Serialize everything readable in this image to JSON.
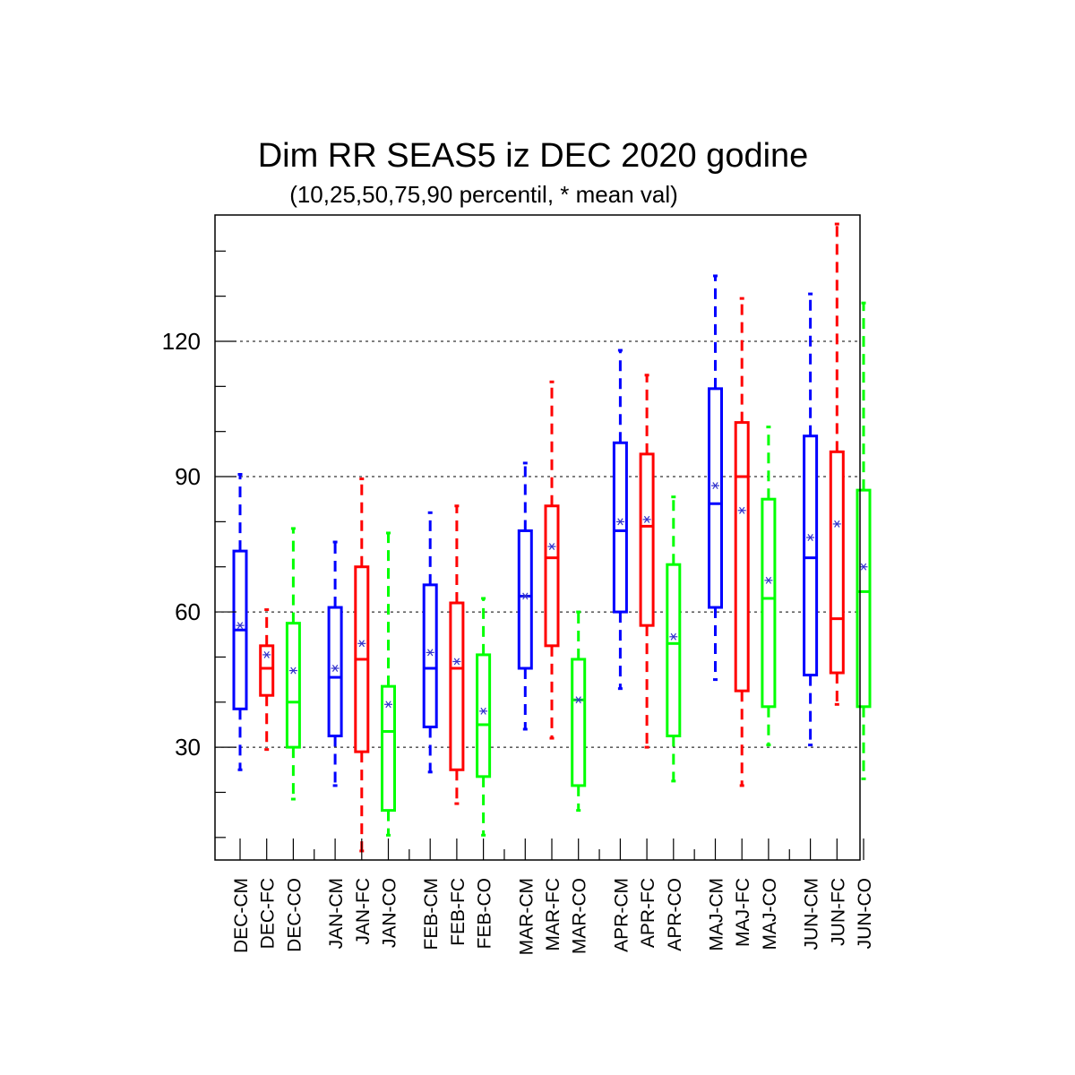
{
  "chart_data": {
    "type": "boxplot",
    "title": "Dim RR SEAS5 iz DEC 2020 godine",
    "subtitle": "(10,25,50,75,90 percentil, * mean val)",
    "xlabel": "",
    "ylabel": "",
    "ylim": [
      5,
      148
    ],
    "yticks": [
      30,
      60,
      90,
      120
    ],
    "grid": "horizontal dashed at major ticks",
    "colors": {
      "CM": "#0000ff",
      "FC": "#ff0000",
      "CO": "#00ff00",
      "mean_marker": "#3333cc"
    },
    "groups": [
      {
        "categories": [
          "DEC-CM",
          "DEC-FC",
          "DEC-CO"
        ]
      },
      {
        "categories": [
          "JAN-CM",
          "JAN-FC",
          "JAN-CO"
        ]
      },
      {
        "categories": [
          "FEB-CM",
          "FEB-FC",
          "FEB-CO"
        ]
      },
      {
        "categories": [
          "MAR-CM",
          "MAR-FC",
          "MAR-CO"
        ]
      },
      {
        "categories": [
          "APR-CM",
          "APR-FC",
          "APR-CO"
        ]
      },
      {
        "categories": [
          "MAJ-CM",
          "MAJ-FC",
          "MAJ-CO"
        ]
      },
      {
        "categories": [
          "JUN-CM",
          "JUN-FC",
          "JUN-CO"
        ]
      }
    ],
    "boxes": [
      {
        "label": "DEC-CM",
        "series": "CM",
        "p10": 25,
        "p25": 38.5,
        "p50": 56,
        "p75": 73.5,
        "p90": 90.5,
        "mean": 57
      },
      {
        "label": "DEC-FC",
        "series": "FC",
        "p10": 29.5,
        "p25": 41.5,
        "p50": 47.5,
        "p75": 52.5,
        "p90": 60.5,
        "mean": 50.5
      },
      {
        "label": "DEC-CO",
        "series": "CO",
        "p10": 18.5,
        "p25": 30,
        "p50": 40,
        "p75": 57.5,
        "p90": 78.5,
        "mean": 47
      },
      {
        "label": "JAN-CM",
        "series": "CM",
        "p10": 21.5,
        "p25": 32.5,
        "p50": 45.5,
        "p75": 61,
        "p90": 75.5,
        "mean": 47.5
      },
      {
        "label": "JAN-FC",
        "series": "FC",
        "p10": 7,
        "p25": 29,
        "p50": 49.5,
        "p75": 70,
        "p90": 89.5,
        "mean": 53
      },
      {
        "label": "JAN-CO",
        "series": "CO",
        "p10": 10.5,
        "p25": 16,
        "p50": 33.5,
        "p75": 43.5,
        "p90": 77.5,
        "mean": 39.5
      },
      {
        "label": "FEB-CM",
        "series": "CM",
        "p10": 24.5,
        "p25": 34.5,
        "p50": 47.5,
        "p75": 66,
        "p90": 82,
        "mean": 51
      },
      {
        "label": "FEB-FC",
        "series": "FC",
        "p10": 17.5,
        "p25": 25,
        "p50": 47.5,
        "p75": 62,
        "p90": 83.5,
        "mean": 49
      },
      {
        "label": "FEB-CO",
        "series": "CO",
        "p10": 10.5,
        "p25": 23.5,
        "p50": 35,
        "p75": 50.5,
        "p90": 63,
        "mean": 38
      },
      {
        "label": "MAR-CM",
        "series": "CM",
        "p10": 34,
        "p25": 47.5,
        "p50": 63.5,
        "p75": 78,
        "p90": 93,
        "mean": 63.5
      },
      {
        "label": "MAR-FC",
        "series": "FC",
        "p10": 32,
        "p25": 52.5,
        "p50": 72,
        "p75": 83.5,
        "p90": 111,
        "mean": 74.5
      },
      {
        "label": "MAR-CO",
        "series": "CO",
        "p10": 16,
        "p25": 21.5,
        "p50": 40.5,
        "p75": 49.5,
        "p90": 60,
        "mean": 40.5
      },
      {
        "label": "APR-CM",
        "series": "CM",
        "p10": 43,
        "p25": 60,
        "p50": 78,
        "p75": 97.5,
        "p90": 118,
        "mean": 80
      },
      {
        "label": "APR-FC",
        "series": "FC",
        "p10": 30,
        "p25": 57,
        "p50": 79,
        "p75": 95,
        "p90": 112.5,
        "mean": 80.5
      },
      {
        "label": "APR-CO",
        "series": "CO",
        "p10": 22.5,
        "p25": 32.5,
        "p50": 53,
        "p75": 70.5,
        "p90": 85.5,
        "mean": 54.5
      },
      {
        "label": "MAJ-CM",
        "series": "CM",
        "p10": 45,
        "p25": 61,
        "p50": 84,
        "p75": 109.5,
        "p90": 134.5,
        "mean": 88
      },
      {
        "label": "MAJ-FC",
        "series": "FC",
        "p10": 21.5,
        "p25": 42.5,
        "p50": 90,
        "p75": 102,
        "p90": 129.5,
        "mean": 82.5
      },
      {
        "label": "MAJ-CO",
        "series": "CO",
        "p10": 30.5,
        "p25": 39,
        "p50": 63,
        "p75": 85,
        "p90": 101,
        "mean": 67
      },
      {
        "label": "JUN-CM",
        "series": "CM",
        "p10": 30.5,
        "p25": 46,
        "p50": 72,
        "p75": 99,
        "p90": 130.5,
        "mean": 76.5
      },
      {
        "label": "JUN-FC",
        "series": "FC",
        "p10": 39.5,
        "p25": 46.5,
        "p50": 58.5,
        "p75": 95.5,
        "p90": 146,
        "mean": 79.5
      },
      {
        "label": "JUN-CO",
        "series": "CO",
        "p10": 23,
        "p25": 39,
        "p50": 64.5,
        "p75": 87,
        "p90": 128.5,
        "mean": 70
      }
    ]
  }
}
